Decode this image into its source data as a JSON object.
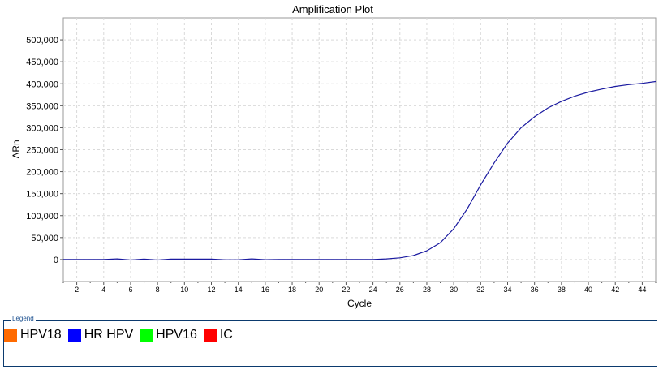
{
  "chart_data": {
    "type": "line",
    "title": "Amplification Plot",
    "xlabel": "Cycle",
    "ylabel": "ΔRn",
    "xlim": [
      1,
      45
    ],
    "ylim": [
      -50000,
      550000
    ],
    "x_ticks": [
      2,
      4,
      6,
      8,
      10,
      12,
      14,
      16,
      18,
      20,
      22,
      24,
      26,
      28,
      30,
      32,
      34,
      36,
      38,
      40,
      42,
      44
    ],
    "y_ticks": [
      0,
      50000,
      100000,
      150000,
      200000,
      250000,
      300000,
      350000,
      400000,
      450000,
      500000
    ],
    "y_tick_labels": [
      "0",
      "50,000",
      "100,000",
      "150,000",
      "200,000",
      "250,000",
      "300,000",
      "350,000",
      "400,000",
      "450,000",
      "500,000"
    ],
    "grid": true,
    "series": [
      {
        "name": "HR HPV",
        "color": "#1a1aa0",
        "x": [
          1,
          2,
          3,
          4,
          5,
          6,
          7,
          8,
          9,
          10,
          11,
          12,
          13,
          14,
          15,
          16,
          17,
          18,
          19,
          20,
          21,
          22,
          23,
          24,
          25,
          26,
          27,
          28,
          29,
          30,
          31,
          32,
          33,
          34,
          35,
          36,
          37,
          38,
          39,
          40,
          41,
          42,
          43,
          44,
          45
        ],
        "y": [
          0,
          0,
          0,
          0,
          1500,
          -1000,
          1000,
          -1000,
          1000,
          1000,
          1000,
          1000,
          -500,
          -500,
          1500,
          -300,
          0,
          0,
          0,
          0,
          0,
          0,
          0,
          0,
          1500,
          4000,
          9000,
          20000,
          38000,
          70000,
          115000,
          170000,
          220000,
          265000,
          300000,
          325000,
          345000,
          360000,
          372000,
          381000,
          388000,
          394000,
          398000,
          401000,
          405000
        ]
      }
    ],
    "legend": {
      "title": "Legend",
      "position": "bottom",
      "items": [
        {
          "label": "HPV18",
          "color": "#ff6a00"
        },
        {
          "label": "HR HPV",
          "color": "#0000ff"
        },
        {
          "label": "HPV16",
          "color": "#00ff00"
        },
        {
          "label": "IC",
          "color": "#ff0000"
        }
      ]
    }
  }
}
